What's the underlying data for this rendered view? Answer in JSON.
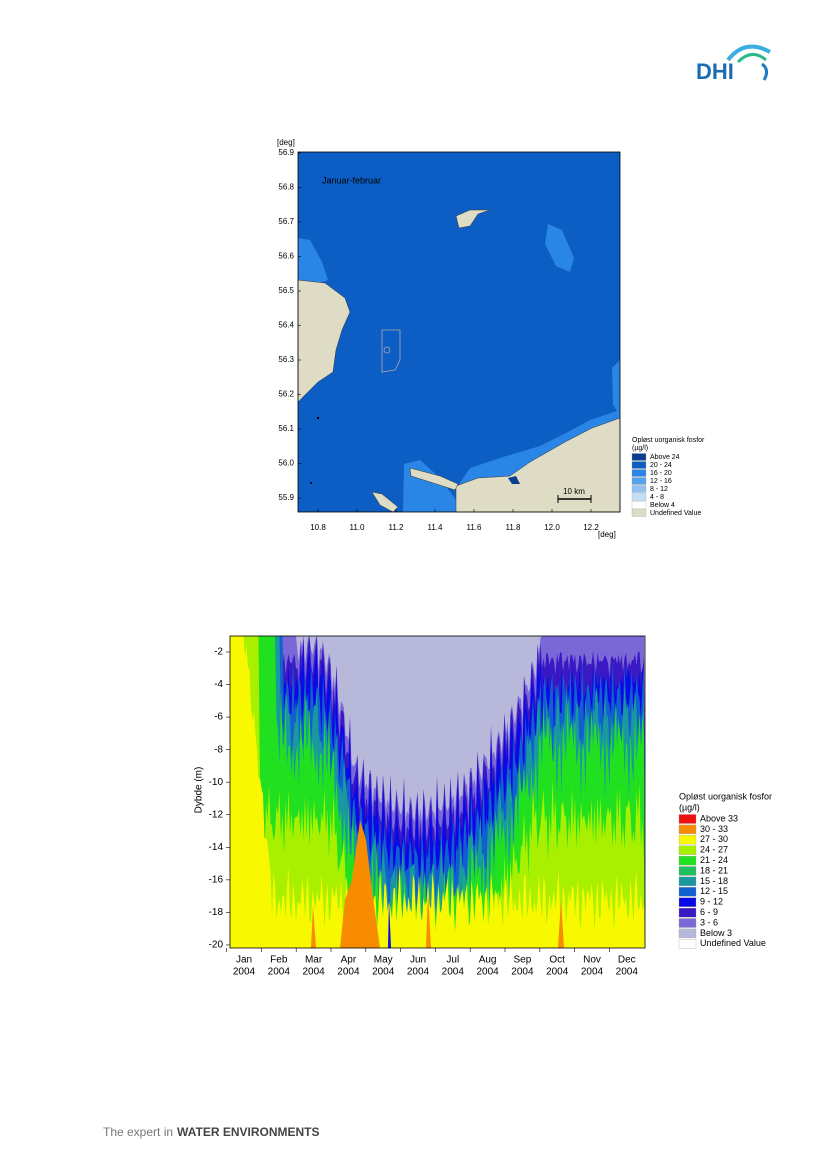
{
  "header": {
    "logo": "DHI"
  },
  "map_figure": {
    "title": "Januar-februar",
    "y_unit": "[deg]",
    "x_unit": "[deg]",
    "yticks": [
      "56.9",
      "56.8",
      "56.7",
      "56.6",
      "56.5",
      "56.4",
      "56.3",
      "56.2",
      "56.1",
      "56.0",
      "55.9"
    ],
    "xticks": [
      "10.8",
      "11.0",
      "11.2",
      "11.4",
      "11.6",
      "11.8",
      "12.0",
      "12.2"
    ],
    "scale_label": "10 km",
    "legend": {
      "title": "Opløst uorganisk fosfor",
      "unit": "(µg/l)",
      "items": [
        {
          "label": "Above 24",
          "color": "#0b3d8f"
        },
        {
          "label": "20 - 24",
          "color": "#0d5ec4"
        },
        {
          "label": "16 - 20",
          "color": "#2a86e6"
        },
        {
          "label": "12 - 16",
          "color": "#55a2ee"
        },
        {
          "label": "8 - 12",
          "color": "#8fc2f2"
        },
        {
          "label": "4 - 8",
          "color": "#c4def7"
        },
        {
          "label": "Below 4",
          "color": "#ffffff"
        },
        {
          "label": "Undefined Value",
          "color": "#dedcc4"
        }
      ]
    }
  },
  "profile_figure": {
    "y_label": "Dybde (m)",
    "yticks": [
      "-2",
      "-4",
      "-6",
      "-8",
      "-10",
      "-12",
      "-14",
      "-16",
      "-18",
      "-20"
    ],
    "xticks": [
      {
        "month": "Jan",
        "year": "2004"
      },
      {
        "month": "Feb",
        "year": "2004"
      },
      {
        "month": "Mar",
        "year": "2004"
      },
      {
        "month": "Apr",
        "year": "2004"
      },
      {
        "month": "May",
        "year": "2004"
      },
      {
        "month": "Jun",
        "year": "2004"
      },
      {
        "month": "Jul",
        "year": "2004"
      },
      {
        "month": "Aug",
        "year": "2004"
      },
      {
        "month": "Sep",
        "year": "2004"
      },
      {
        "month": "Oct",
        "year": "2004"
      },
      {
        "month": "Nov",
        "year": "2004"
      },
      {
        "month": "Dec",
        "year": "2004"
      }
    ],
    "legend": {
      "title": "Opløst uorganisk fosfor",
      "unit": "(µg/l)",
      "items": [
        {
          "label": "Above 33",
          "color": "#f01010"
        },
        {
          "label": "30 - 33",
          "color": "#f88c00"
        },
        {
          "label": "27 - 30",
          "color": "#f8f800"
        },
        {
          "label": "24 - 27",
          "color": "#a8f000"
        },
        {
          "label": "21 - 24",
          "color": "#20e020"
        },
        {
          "label": "18 - 21",
          "color": "#20c060"
        },
        {
          "label": "15 - 18",
          "color": "#1a98a0"
        },
        {
          "label": "12 - 15",
          "color": "#1060d0"
        },
        {
          "label": "9 - 12",
          "color": "#0a0ae6"
        },
        {
          "label": "6 - 9",
          "color": "#3a18c4"
        },
        {
          "label": "3 - 6",
          "color": "#7a68d6"
        },
        {
          "label": "Below 3",
          "color": "#b8b8da"
        },
        {
          "label": "Undefined Value",
          "color": "#ffffff"
        }
      ]
    }
  },
  "footer": {
    "text_light": "The expert in",
    "text_bold": "WATER ENVIRONMENTS"
  }
}
